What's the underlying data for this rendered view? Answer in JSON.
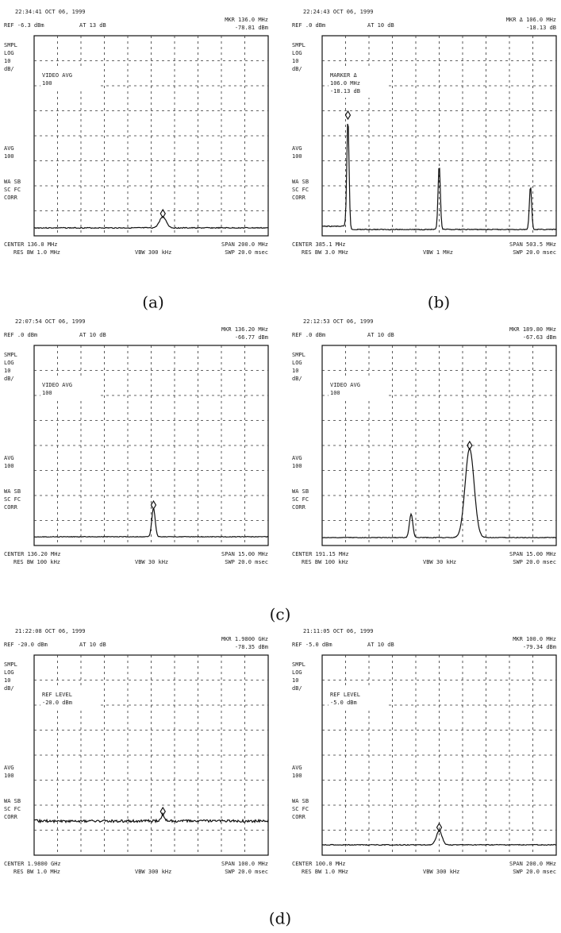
{
  "panels": [
    {
      "timestamp": "22:34:41 OCT 06, 1999",
      "ref": "REF -6.3 dBm",
      "atten": "AT 13 dB",
      "marker": [
        "MKR 136.0 MHz",
        "-78.81 dBm"
      ],
      "side": [
        "SMPL",
        "LOG",
        "10",
        "dB/"
      ],
      "note": [
        "VIDEO AVG",
        "100"
      ],
      "avg": [
        "AVG",
        "100"
      ],
      "corr": [
        "WA SB",
        "SC FC",
        "CORR"
      ],
      "footer": {
        "center": "CENTER 136.0 MHz",
        "span": "SPAN 200.0 MHz",
        "rbw": "RES BW 1.0 MHz",
        "vbw": "VBW 300 kHz",
        "swp": "SWP 20.0 msec"
      }
    },
    {
      "timestamp": "22:24:43 OCT 06, 1999",
      "ref": "REF .0 dBm",
      "atten": "AT 10 dB",
      "marker": [
        "MKR Δ 106.0 MHz",
        "-18.13 dB"
      ],
      "side": [
        "SMPL",
        "LOG",
        "10",
        "dB/"
      ],
      "note": [
        "MARKER Δ",
        "106.0 MHz",
        "-18.13 dB"
      ],
      "avg": [
        "AVG",
        "100"
      ],
      "corr": [
        "WA SB",
        "SC FC",
        "CORR"
      ],
      "footer": {
        "center": "CENTER 385.1 MHz",
        "span": "SPAN 503.5 MHz",
        "rbw": "RES BW 3.0 MHz",
        "vbw": "VBW 1 MHz",
        "swp": "SWP 20.0 msec"
      }
    },
    {
      "timestamp": "22:07:54 OCT 06, 1999",
      "ref": "REF .0 dBm",
      "atten": "AT 10 dB",
      "marker": [
        "MKR 136.20 MHz",
        "-66.77 dBm"
      ],
      "side": [
        "SMPL",
        "LOG",
        "10",
        "dB/"
      ],
      "note": [
        "VIDEO AVG",
        "100"
      ],
      "avg": [
        "AVG",
        "100"
      ],
      "corr": [
        "WA SB",
        "SC FC",
        "CORR"
      ],
      "footer": {
        "center": "CENTER 136.20 MHz",
        "span": "SPAN 15.00 MHz",
        "rbw": "RES BW 100 kHz",
        "vbw": "VBW 30 kHz",
        "swp": "SWP 20.0 msec"
      }
    },
    {
      "timestamp": "22:12:53 OCT 06, 1999",
      "ref": "REF .0 dBm",
      "atten": "AT 10 dB",
      "marker": [
        "MKR 189.80 MHz",
        "-67.63 dBm"
      ],
      "side": [
        "SMPL",
        "LOG",
        "10",
        "dB/"
      ],
      "note": [
        "VIDEO AVG",
        "100"
      ],
      "avg": [
        "AVG",
        "100"
      ],
      "corr": [
        "WA SB",
        "SC FC",
        "CORR"
      ],
      "footer": {
        "center": "CENTER 191.15 MHz",
        "span": "SPAN 15.00 MHz",
        "rbw": "RES BW 100 kHz",
        "vbw": "VBW 30 kHz",
        "swp": "SWP 20.0 msec"
      }
    },
    {
      "timestamp": "21:22:08 OCT 06, 1999",
      "ref": "REF -20.0 dBm",
      "atten": "AT 10 dB",
      "marker": [
        "MKR 1.9800 GHz",
        "-78.35 dBm"
      ],
      "side": [
        "SMPL",
        "LOG",
        "10",
        "dB/"
      ],
      "note": [
        "REF LEVEL",
        "-20.0 dBm"
      ],
      "avg": [
        "AVG",
        "100"
      ],
      "corr": [
        "WA SB",
        "SC FC",
        "CORR"
      ],
      "footer": {
        "center": "CENTER 1.9800 GHz",
        "span": "SPAN 100.0 MHz",
        "rbw": "RES BW 1.0 MHz",
        "vbw": "VBW 300 kHz",
        "swp": "SWP 20.0 msec"
      }
    },
    {
      "timestamp": "21:11:05 OCT 06, 1999",
      "ref": "REF -5.0 dBm",
      "atten": "AT 10 dB",
      "marker": [
        "MKR 100.0 MHz",
        "-79.34 dBm"
      ],
      "side": [
        "SMPL",
        "LOG",
        "10",
        "dB/"
      ],
      "note": [
        "REF LEVEL",
        "-5.0 dBm"
      ],
      "avg": [
        "AVG",
        "100"
      ],
      "corr": [
        "WA SB",
        "SC FC",
        "CORR"
      ],
      "footer": {
        "center": "CENTER 100.0 MHz",
        "span": "SPAN 200.0 MHz",
        "rbw": "RES BW 1.0 MHz",
        "vbw": "VBW 300 kHz",
        "swp": "SWP 20.0 msec"
      }
    }
  ],
  "captions": [
    "(a)",
    "(b)",
    "(c)",
    "(d)"
  ]
}
